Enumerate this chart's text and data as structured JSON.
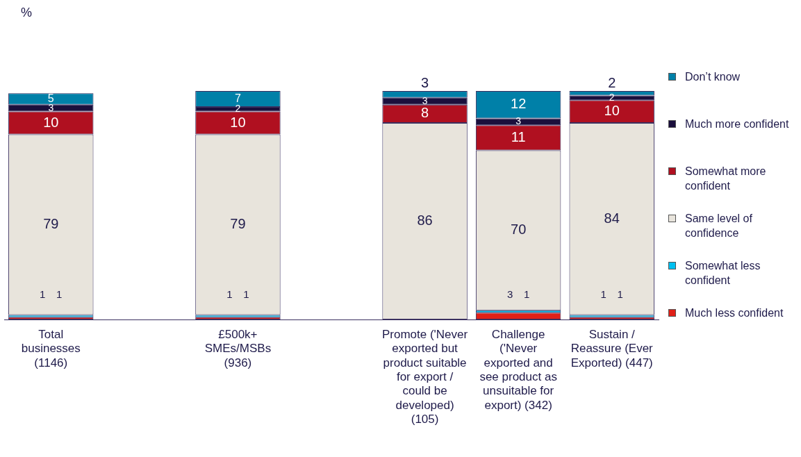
{
  "chart_data": {
    "type": "bar",
    "stacked": true,
    "annotations": [
      "%"
    ],
    "categories": [
      "Total businesses (1146)",
      null,
      "£500k+ SMEs/MSBs (936)",
      null,
      "Promote ('Never exported but product suitable for export / could be developed) (105)",
      "Challenge ('Never exported and see product as unsuitable for export) (342)",
      "Sustain / Reassure (Ever Exported) (447)"
    ],
    "ylim": [
      0,
      100
    ],
    "tick_labels": "x",
    "grid": false,
    "legend": "right",
    "data_labels": true,
    "series": [
      {
        "name": "Much less confident",
        "color": "#e02018",
        "values": [
          1,
          null,
          1,
          null,
          null,
          3,
          1
        ]
      },
      {
        "name": "Somewhat less confident",
        "color": "#00c0f0",
        "values": [
          1,
          null,
          1,
          null,
          null,
          1,
          1
        ]
      },
      {
        "name": "Same level of confidence",
        "color": "#e8e4dc",
        "values": [
          79,
          null,
          79,
          null,
          86,
          70,
          84
        ]
      },
      {
        "name": "Somewhat more confident",
        "color": "#b01020",
        "values": [
          10,
          null,
          10,
          null,
          8,
          11,
          10
        ]
      },
      {
        "name": "Much more confident",
        "color": "#1a0f3c",
        "values": [
          3,
          null,
          2,
          null,
          3,
          3,
          2
        ]
      },
      {
        "name": "Don’t know",
        "color": "#0080a8",
        "values": [
          5,
          null,
          7,
          null,
          3,
          12,
          2
        ]
      }
    ]
  }
}
